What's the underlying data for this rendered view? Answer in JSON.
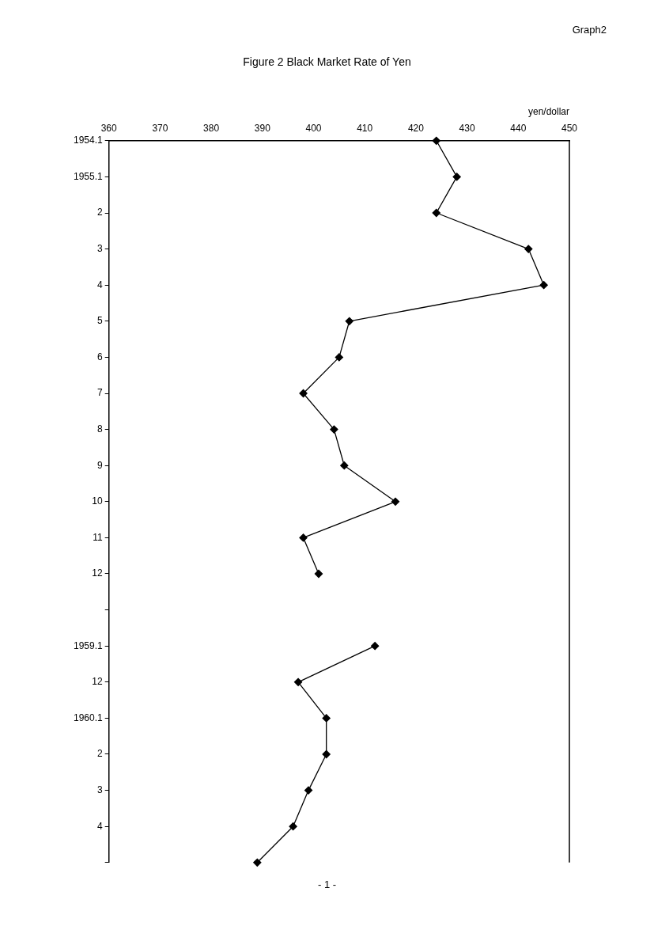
{
  "chart_data": {
    "type": "line",
    "orientation": "horizontal",
    "title": "Figure 2 Black Market Rate of Yen",
    "xlabel": "yen/dollar",
    "annotations": [
      "Graph2",
      "- 1 -"
    ],
    "categories": [
      "1954.1",
      "1955.1",
      "2",
      "3",
      "4",
      "5",
      "6",
      "7",
      "8",
      "9",
      "10",
      "11",
      "12",
      null,
      "1959.1",
      "12",
      "1960.1",
      "2",
      "3",
      "4",
      null
    ],
    "series": [
      {
        "color": "#000000",
        "values": [
          424,
          428,
          424,
          442,
          445,
          407,
          405,
          398,
          404,
          406,
          416,
          398,
          401,
          null,
          412,
          397,
          402.5,
          402.5,
          399,
          396,
          389
        ]
      }
    ],
    "xlim": [
      360,
      450
    ],
    "xticks": [
      360,
      370,
      380,
      390,
      400,
      410,
      420,
      430,
      440,
      450
    ],
    "grid": false,
    "marker": "diamond",
    "line_style": "solid"
  }
}
